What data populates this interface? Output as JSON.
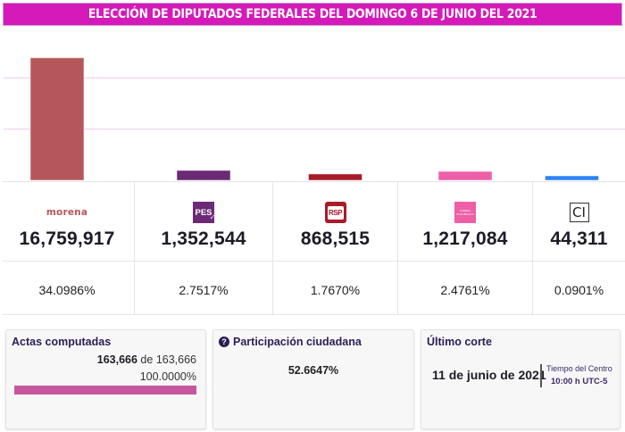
{
  "header": {
    "title": "ELECCIÓN DE DIPUTADOS FEDERALES DEL DOMINGO 6 DE JUNIO DEL 2021"
  },
  "chart_data": {
    "type": "bar",
    "title": "ELECCIÓN DE DIPUTADOS FEDERALES DEL DOMINGO 6 DE JUNIO DEL 2021",
    "xlabel": "",
    "ylabel": "",
    "categories": [
      "morena",
      "PES",
      "RSP",
      "Fuerza por México",
      "CI"
    ],
    "values": [
      16759917,
      1352544,
      868515,
      1217084,
      44311
    ],
    "colors": [
      "#b5575a",
      "#6b2a74",
      "#a81b2a",
      "#ee5fa8",
      "#2b83f6"
    ],
    "ylim": [
      0,
      21000000
    ],
    "gridlines": [
      7000000,
      14000000
    ],
    "grid": true,
    "legend": "none"
  },
  "parties": [
    {
      "key": "morena",
      "logo_text": "morena",
      "votes": "16,759,917",
      "percent": "34.0986%"
    },
    {
      "key": "pes",
      "logo_text": "PES",
      "votes": "1,352,544",
      "percent": "2.7517%"
    },
    {
      "key": "rsp",
      "logo_text": "RSP",
      "votes": "868,515",
      "percent": "1.7670%"
    },
    {
      "key": "fxm",
      "logo_text_1": "FUERZA",
      "logo_text_2": "POR MÉXICO",
      "votes": "1,217,084",
      "percent": "2.4761%"
    },
    {
      "key": "ci",
      "logo_text": "CI",
      "votes": "44,311",
      "percent": "0.0901%"
    }
  ],
  "actas": {
    "title": "Actas computadas",
    "computed": "163,666",
    "connector": "de",
    "total": "163,666",
    "percent_label": "100.0000%",
    "progress": 1.0
  },
  "participacion": {
    "title": "Participación ciudadana",
    "value": "52.6647%"
  },
  "corte": {
    "title": "Último corte",
    "date": "11 de junio de 2021",
    "tz_label": "Tiempo del Centro",
    "time": "10:00 h UTC-5"
  }
}
